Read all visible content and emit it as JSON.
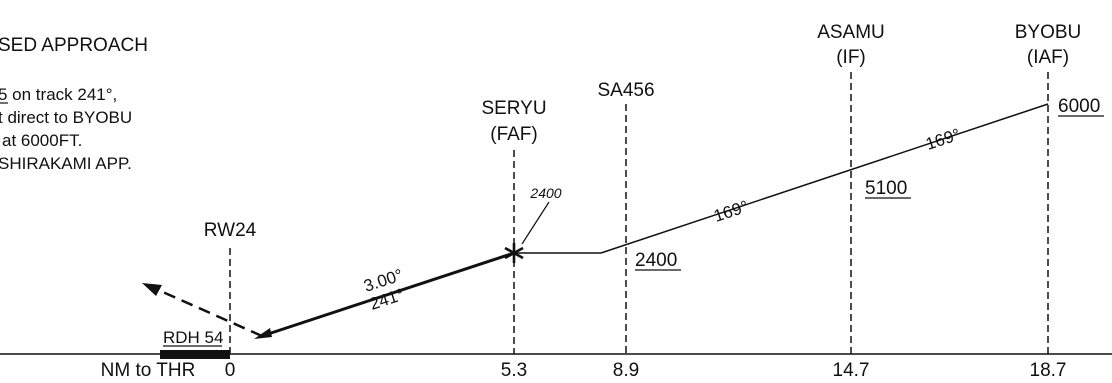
{
  "title": "SED APPROACH",
  "notes": [
    "5 on track 241°,",
    "t direct to BYOBU",
    "at 6000FT.",
    "SHIRAKAMI  APP."
  ],
  "axis": {
    "label": "NM to THR"
  },
  "fixes": [
    {
      "id": "rw24",
      "name": "RW24",
      "role": "",
      "distance": "0"
    },
    {
      "id": "seryu",
      "name": "SERYU",
      "role": "(FAF)",
      "distance": "5.3",
      "altitude": "2400"
    },
    {
      "id": "sa456",
      "name": "SA456",
      "role": "",
      "distance": "8.9",
      "altitude": "2400"
    },
    {
      "id": "asamu",
      "name": "ASAMU",
      "role": "(IF)",
      "distance": "14.7",
      "altitude": "5100"
    },
    {
      "id": "byobu",
      "name": "BYOBU",
      "role": "(IAF)",
      "distance": "18.7",
      "altitude": "6000"
    }
  ],
  "final": {
    "glidepath": "3.00°",
    "track": "241°",
    "rdh": "RDH 54"
  },
  "legs": [
    {
      "track": "169°"
    },
    {
      "track": "169°"
    }
  ],
  "faf_crossing_altitude": "2400"
}
